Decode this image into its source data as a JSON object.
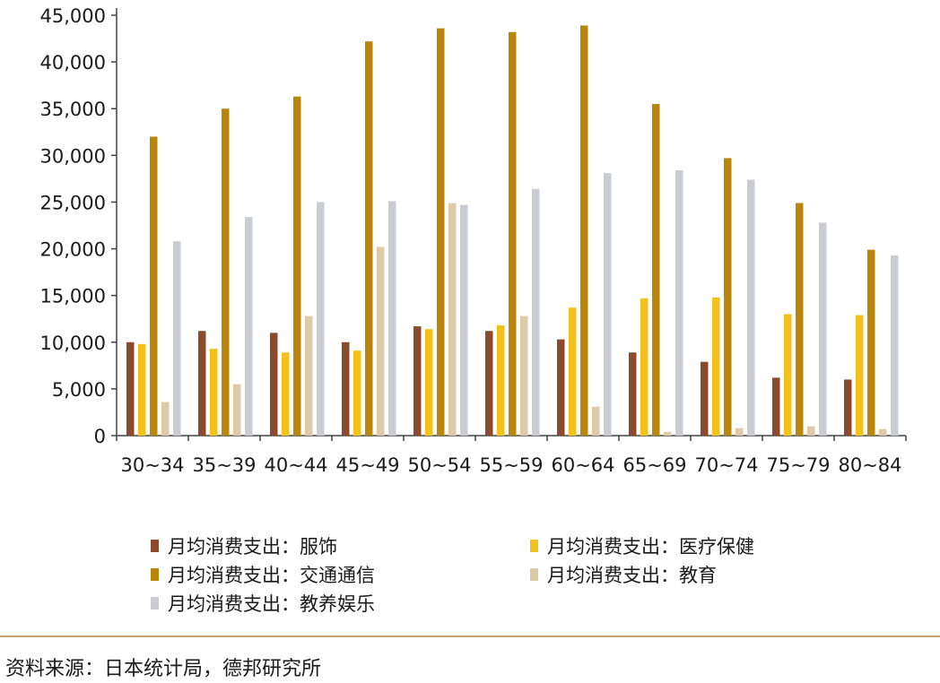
{
  "chart_data": {
    "type": "bar",
    "categories": [
      "30~34",
      "35~39",
      "40~44",
      "45~49",
      "50~54",
      "55~59",
      "60~64",
      "65~69",
      "70~74",
      "75~79",
      "80~84"
    ],
    "series": [
      {
        "name": "月均消费支出：服饰",
        "color": "#8b4a2b",
        "values": [
          10000,
          11200,
          11000,
          10000,
          11700,
          11200,
          10300,
          8900,
          7900,
          6200,
          6000
        ]
      },
      {
        "name": "月均消费支出：医疗保健",
        "color": "#f2c21b",
        "values": [
          9800,
          9300,
          8900,
          9100,
          11400,
          11800,
          13700,
          14700,
          14800,
          13000,
          12900
        ]
      },
      {
        "name": "月均消费支出：交通通信",
        "color": "#b8860b",
        "values": [
          32000,
          35000,
          36300,
          42200,
          43600,
          43200,
          43900,
          35500,
          29700,
          24900,
          19900
        ]
      },
      {
        "name": "月均消费支出：教育",
        "color": "#e0c9a6",
        "values": [
          3600,
          5500,
          12800,
          20200,
          24900,
          12800,
          3100,
          400,
          800,
          1000,
          700
        ]
      },
      {
        "name": "月均消费支出：教养娱乐",
        "color": "#c9ccd3",
        "values": [
          20800,
          23400,
          25000,
          25100,
          24700,
          26400,
          28100,
          28400,
          27400,
          22800,
          19300
        ]
      }
    ],
    "yticks": [
      "0",
      "5,000",
      "10,000",
      "15,000",
      "20,000",
      "25,000",
      "30,000",
      "35,000",
      "40,000",
      "45,000"
    ],
    "ylim": [
      0,
      45000
    ],
    "legend_position": "bottom"
  },
  "source": "资料来源：日本统计局，德邦研究所"
}
